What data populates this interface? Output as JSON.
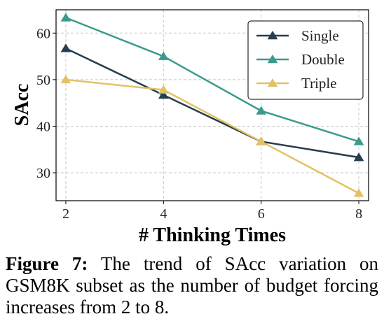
{
  "chart_data": {
    "type": "line",
    "x": [
      2,
      4,
      6,
      8
    ],
    "xlabel": "# Thinking Times",
    "ylabel": "SAcc",
    "xlim": [
      1.8,
      8.2
    ],
    "ylim": [
      24,
      65
    ],
    "xticks": [
      2,
      4,
      6,
      8
    ],
    "yticks": [
      30,
      40,
      50,
      60
    ],
    "grid": true,
    "legend_position": "top-right",
    "series": [
      {
        "name": "Single",
        "values": [
          56.7,
          46.7,
          36.7,
          33.3
        ],
        "color": "#263e4f",
        "marker": "triangle"
      },
      {
        "name": "Double",
        "values": [
          63.3,
          55.0,
          43.3,
          36.7
        ],
        "color": "#3a9b8c",
        "marker": "triangle"
      },
      {
        "name": "Triple",
        "values": [
          50.0,
          47.8,
          36.7,
          25.6
        ],
        "color": "#e2c265",
        "marker": "triangle"
      }
    ]
  },
  "caption": {
    "label": "Figure 7:",
    "text": "The trend of SAcc variation on GSM8K subset as the number of budget forc­ing increases from 2 to 8."
  }
}
